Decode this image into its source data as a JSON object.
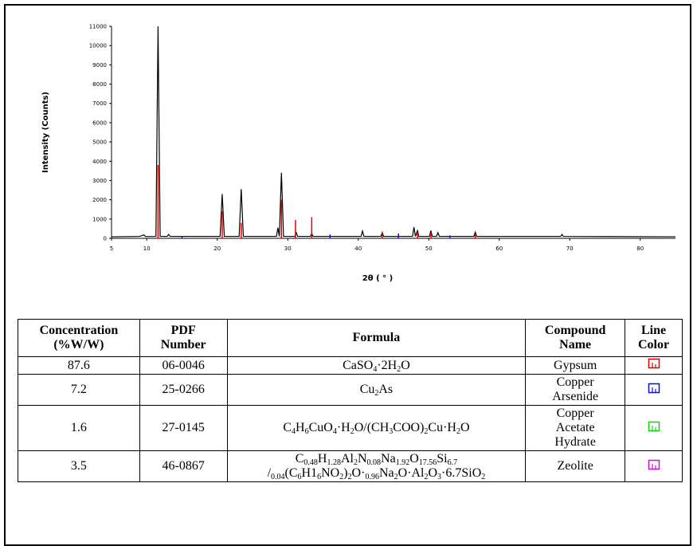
{
  "chart_data": {
    "type": "line",
    "x_label": "2θ ( ° )",
    "y_label": "Intensity (Counts)",
    "xlim": [
      5,
      85
    ],
    "xticks": [
      5,
      10,
      20,
      30,
      40,
      50,
      60,
      70,
      80
    ],
    "ylim": [
      0,
      11000
    ],
    "yticks": [
      0,
      1000,
      2000,
      3000,
      4000,
      5000,
      6000,
      7000,
      8000,
      9000,
      10000,
      11000
    ],
    "series": [
      {
        "color": "#000000",
        "style": "line",
        "x": [
          5,
          7,
          9,
          9.6,
          9.8,
          10,
          11.3,
          11.6,
          11.9,
          12.9,
          13.1,
          13.3,
          18,
          20.4,
          20.7,
          21,
          23.1,
          23.4,
          23.7,
          28.4,
          28.6,
          28.8,
          29.1,
          29.4,
          31,
          31.2,
          31.4,
          33.2,
          33.4,
          33.6,
          40.4,
          40.6,
          40.8,
          43.2,
          43.4,
          43.6,
          47.7,
          47.9,
          48.1,
          48.4,
          48.6,
          50.1,
          50.3,
          50.5,
          51.1,
          51.3,
          51.5,
          56.4,
          56.6,
          56.8,
          68.7,
          68.9,
          69.1,
          85
        ],
        "values": [
          80,
          90,
          100,
          180,
          100,
          90,
          100,
          11000,
          100,
          100,
          200,
          100,
          100,
          100,
          2300,
          100,
          100,
          2550,
          100,
          100,
          550,
          100,
          3400,
          100,
          100,
          300,
          100,
          100,
          250,
          100,
          100,
          380,
          100,
          100,
          300,
          100,
          100,
          580,
          100,
          400,
          100,
          100,
          400,
          100,
          100,
          300,
          100,
          100,
          320,
          100,
          100,
          200,
          100,
          80
        ]
      },
      {
        "color": "#e00000",
        "style": "stick",
        "x": [
          11.6,
          20.7,
          23.4,
          29.1,
          31.1,
          33.4,
          43.4,
          48.4,
          50.3,
          56.6
        ],
        "values": [
          3800,
          1400,
          800,
          2000,
          950,
          1100,
          350,
          300,
          300,
          200
        ]
      },
      {
        "color": "#1010c0",
        "style": "stick",
        "x": [
          15,
          36,
          45.7,
          53
        ],
        "values": [
          100,
          200,
          250,
          150
        ]
      }
    ]
  },
  "table": {
    "header": [
      [
        "Concentration",
        "(%W/W)"
      ],
      [
        "PDF",
        "Number"
      ],
      [
        "Formula"
      ],
      [
        "Compound",
        "Name"
      ],
      [
        "Line",
        "Color"
      ]
    ],
    "rows": [
      {
        "concentration": 87.6,
        "pdf": "06-0046",
        "formula": [
          [
            "CaSO",
            {
              "sub": "4"
            },
            "·2H",
            {
              "sub": "2"
            },
            "O"
          ]
        ],
        "name": [
          "Gypsum"
        ],
        "line_color": "#e00000"
      },
      {
        "concentration": 7.2,
        "pdf": "25-0266",
        "formula": [
          [
            "Cu",
            {
              "sub": "2"
            },
            "As"
          ]
        ],
        "name": [
          "Copper",
          "Arsenide"
        ],
        "line_color": "#1010c0"
      },
      {
        "concentration": 1.6,
        "pdf": "27-0145",
        "formula": [
          [
            "C",
            {
              "sub": "4"
            },
            "H",
            {
              "sub": "6"
            },
            "CuO",
            {
              "sub": "4"
            },
            "·H",
            {
              "sub": "2"
            },
            "O/(CH",
            {
              "sub": "3"
            },
            "COO)",
            {
              "sub": "2"
            },
            "Cu·H",
            {
              "sub": "2"
            },
            "O"
          ]
        ],
        "name": [
          "Copper",
          "Acetate",
          "Hydrate"
        ],
        "line_color": "#10d010"
      },
      {
        "concentration": 3.5,
        "pdf": "46-0867",
        "formula": [
          [
            "C",
            {
              "sub": "0.48"
            },
            "H",
            {
              "sub": "1.28"
            },
            "Al",
            {
              "sub": "2"
            },
            "N",
            {
              "sub": "0.08"
            },
            "Na",
            {
              "sub": "1.92"
            },
            "O",
            {
              "sub": "17.56"
            },
            "Si",
            {
              "sub": "6.7"
            }
          ],
          [
            "/",
            {
              "sub": "0.04"
            },
            "(C",
            {
              "sub": "6"
            },
            "H1",
            {
              "sub": "6"
            },
            "NO",
            {
              "sub": "2"
            },
            ")",
            {
              "sub": "2"
            },
            "O·",
            {
              "sub": "0.96"
            },
            "Na",
            {
              "sub": "2"
            },
            "O·Al",
            {
              "sub": "2"
            },
            "O",
            {
              "sub": "3"
            },
            "·6.7SiO",
            {
              "sub": "2"
            }
          ]
        ],
        "name": [
          "Zeolite"
        ],
        "line_color": "#d010d0"
      }
    ]
  }
}
